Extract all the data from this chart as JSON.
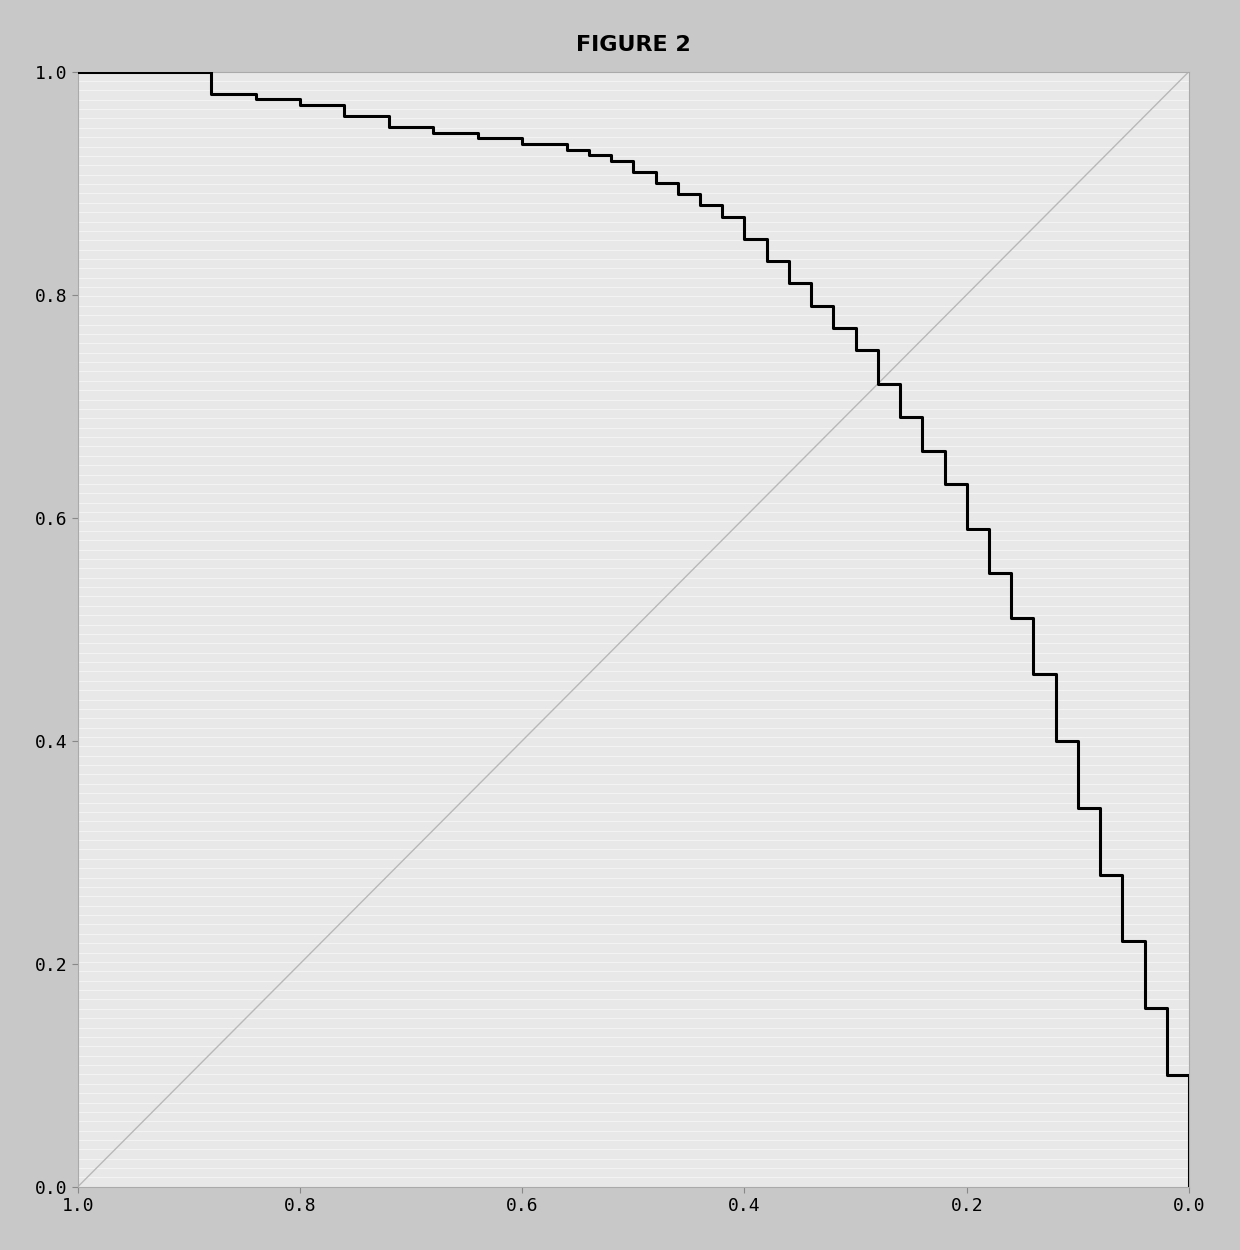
{
  "title": "FIGURE 2",
  "title_fontsize": 16,
  "title_fontweight": "bold",
  "xlim": [
    1.0,
    0.0
  ],
  "ylim": [
    0.0,
    1.0
  ],
  "xticks": [
    1.0,
    0.8,
    0.6,
    0.4,
    0.2,
    0.0
  ],
  "yticks": [
    0.0,
    0.2,
    0.4,
    0.6,
    0.8,
    1.0
  ],
  "ytick_labels": [
    "0.0",
    "0.2",
    "0.4",
    "0.6",
    "0.8",
    "1.0"
  ],
  "xtick_labels": [
    "1.0",
    "0.8",
    "0.6",
    "0.4",
    "0.2",
    "0.0"
  ],
  "plot_bg_color": "#e8e8e8",
  "outer_bg_color": "#cccccc",
  "roc_color": "#000000",
  "roc_linewidth": 2.2,
  "diag_color": "#b8b8b8",
  "diag_linewidth": 1.0,
  "hline_color": "#ffffff",
  "hline_alpha": 0.7,
  "hline_lw": 0.5,
  "fpr": [
    0.0,
    0.02,
    0.04,
    0.06,
    0.08,
    0.1,
    0.12,
    0.14,
    0.16,
    0.18,
    0.2,
    0.22,
    0.24,
    0.26,
    0.28,
    0.3,
    0.32,
    0.34,
    0.36,
    0.38,
    0.4,
    0.42,
    0.44,
    0.46,
    0.48,
    0.5,
    0.52,
    0.54,
    0.56,
    0.6,
    0.64,
    0.68,
    0.72,
    0.76,
    0.8,
    0.84,
    0.88,
    1.0
  ],
  "tpr": [
    0.1,
    0.16,
    0.22,
    0.28,
    0.34,
    0.4,
    0.46,
    0.51,
    0.55,
    0.59,
    0.63,
    0.66,
    0.69,
    0.72,
    0.75,
    0.77,
    0.79,
    0.81,
    0.83,
    0.85,
    0.87,
    0.88,
    0.89,
    0.9,
    0.91,
    0.92,
    0.925,
    0.93,
    0.935,
    0.94,
    0.945,
    0.95,
    0.96,
    0.97,
    0.975,
    0.98,
    1.0,
    1.0
  ]
}
